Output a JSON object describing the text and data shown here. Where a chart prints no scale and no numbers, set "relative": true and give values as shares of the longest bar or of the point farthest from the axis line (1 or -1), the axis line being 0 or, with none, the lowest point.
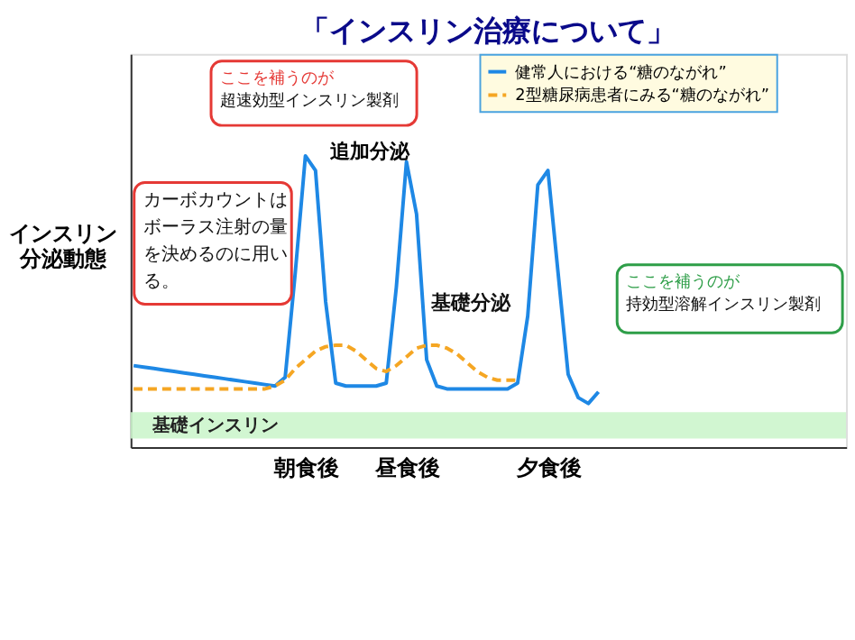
{
  "chart_data": {
    "type": "line",
    "title": "「インスリン治療について」",
    "ylabel": "インスリン分泌動態",
    "relative": true,
    "grid": false,
    "legend": "top right",
    "marker": "none",
    "categories": [
      null,
      null,
      null,
      null,
      null,
      null,
      null,
      null,
      null,
      null,
      null,
      null,
      null,
      null,
      null,
      null,
      null,
      "朝食後",
      null,
      null,
      null,
      null,
      null,
      null,
      null,
      null,
      null,
      "昼食後",
      null,
      null,
      null,
      null,
      null,
      null,
      null,
      null,
      null,
      null,
      null,
      null,
      null,
      "夕食後",
      null,
      null,
      null,
      null,
      null
    ],
    "series": [
      {
        "name": "健常人における“糖のながれ”",
        "color": "#1e88e5",
        "line_style": "solid",
        "values": [
          0.28,
          0.275,
          0.27,
          0.265,
          0.26,
          0.255,
          0.25,
          0.245,
          0.24,
          0.235,
          0.23,
          0.225,
          0.22,
          0.215,
          0.21,
          0.24,
          0.6,
          1.0,
          0.95,
          0.5,
          0.22,
          0.21,
          0.21,
          0.21,
          0.21,
          0.22,
          0.55,
          0.98,
          0.8,
          0.3,
          0.21,
          0.2,
          0.2,
          0.2,
          0.2,
          0.2,
          0.2,
          0.2,
          0.22,
          0.45,
          0.9,
          0.95,
          0.6,
          0.25,
          0.17,
          0.15,
          0.19
        ]
      },
      {
        "name": "2型糖尿病患者にみる“糖のながれ”",
        "color": "#f5a623",
        "line_style": "dashed",
        "values": [
          0.2,
          0.2,
          0.2,
          0.2,
          0.2,
          0.2,
          0.2,
          0.2,
          0.2,
          0.2,
          0.2,
          0.2,
          0.2,
          0.2,
          0.21,
          0.23,
          0.27,
          0.3,
          0.33,
          0.345,
          0.35,
          0.35,
          0.33,
          0.3,
          0.27,
          0.26,
          0.28,
          0.31,
          0.34,
          0.35,
          0.35,
          0.34,
          0.32,
          0.29,
          0.26,
          0.24,
          0.23,
          0.23,
          0.23,
          null,
          null,
          null,
          null,
          null,
          null,
          null,
          null
        ]
      }
    ],
    "bands": [
      {
        "axis": "y",
        "from": 0.03,
        "to": 0.12,
        "label": "基礎インスリン",
        "color": "#ccf5cc"
      }
    ],
    "annotations": [
      "ここを補うのが",
      "超速効型インスリン製剤",
      {
        "text": "追加分泌",
        "x": "朝食後",
        "y": 1.0
      },
      "カーボカウントはボーラス注射の量を決めるのに用いる。",
      "基礎分泌",
      "ここを補うのが",
      "持効型溶解インスリン製剤"
    ]
  }
}
